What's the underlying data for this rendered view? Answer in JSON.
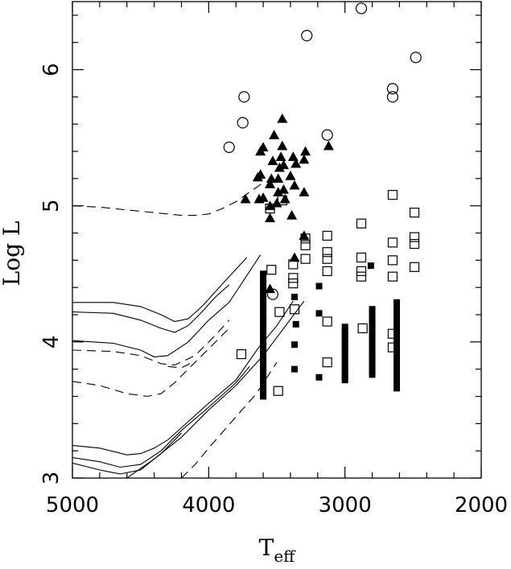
{
  "chart_data": {
    "type": "scatter",
    "xlabel_main": "T",
    "xlabel_sub": "eff",
    "ylabel": "Log L",
    "xlim": [
      5000,
      2000
    ],
    "ylim": [
      3,
      6.5
    ],
    "x_ticks": [
      5000,
      4000,
      3000,
      2000
    ],
    "x_tick_labels": [
      "5000",
      "4000",
      "3000",
      "2000"
    ],
    "y_ticks": [
      3,
      4,
      5,
      6
    ],
    "y_tick_labels": [
      "3",
      "4",
      "5",
      "6"
    ],
    "grid": false,
    "legend": "none",
    "series": [
      {
        "marker": "open-circle",
        "points": [
          [
            3850,
            5.43
          ],
          [
            3750,
            5.61
          ],
          [
            3740,
            5.8
          ],
          [
            3530,
            4.35
          ],
          [
            3280,
            6.25
          ],
          [
            3130,
            5.52
          ],
          [
            2880,
            6.45
          ],
          [
            2650,
            5.86
          ],
          [
            2650,
            5.8
          ],
          [
            2480,
            6.09
          ]
        ]
      },
      {
        "marker": "filled-triangle",
        "points": [
          [
            3730,
            5.05
          ],
          [
            3630,
            5.05
          ],
          [
            3640,
            5.21
          ],
          [
            3620,
            5.23
          ],
          [
            3620,
            5.4
          ],
          [
            3600,
            5.43
          ],
          [
            3600,
            5.06
          ],
          [
            3550,
            4.91
          ],
          [
            3550,
            5.0
          ],
          [
            3550,
            5.16
          ],
          [
            3540,
            5.2
          ],
          [
            3530,
            5.33
          ],
          [
            3520,
            5.52
          ],
          [
            3500,
            5.02
          ],
          [
            3490,
            5.1
          ],
          [
            3490,
            5.2
          ],
          [
            3480,
            5.28
          ],
          [
            3470,
            5.36
          ],
          [
            3460,
            5.44
          ],
          [
            3460,
            5.64
          ],
          [
            3450,
            5.12
          ],
          [
            3450,
            5.3
          ],
          [
            3440,
            5.05
          ],
          [
            3400,
            5.22
          ],
          [
            3390,
            4.93
          ],
          [
            3380,
            5.36
          ],
          [
            3370,
            5.15
          ],
          [
            3360,
            5.31
          ],
          [
            3300,
            5.1
          ],
          [
            3300,
            5.34
          ],
          [
            3290,
            5.4
          ],
          [
            3120,
            5.44
          ],
          [
            3370,
            4.62
          ],
          [
            3550,
            4.39
          ],
          [
            3300,
            4.78
          ]
        ]
      },
      {
        "marker": "open-square",
        "points": [
          [
            3760,
            3.91
          ],
          [
            3550,
            4.98
          ],
          [
            3540,
            4.53
          ],
          [
            3490,
            3.64
          ],
          [
            3480,
            4.22
          ],
          [
            3460,
            5.04
          ],
          [
            3380,
            4.57
          ],
          [
            3380,
            4.47
          ],
          [
            3380,
            4.43
          ],
          [
            3370,
            4.24
          ],
          [
            3290,
            4.61
          ],
          [
            3290,
            4.71
          ],
          [
            3290,
            4.76
          ],
          [
            3130,
            4.78
          ],
          [
            3130,
            4.66
          ],
          [
            3130,
            4.61
          ],
          [
            3130,
            4.52
          ],
          [
            3130,
            4.15
          ],
          [
            3130,
            3.85
          ],
          [
            2880,
            4.87
          ],
          [
            2880,
            4.62
          ],
          [
            2880,
            4.52
          ],
          [
            2880,
            4.48
          ],
          [
            2870,
            4.1
          ],
          [
            2650,
            5.08
          ],
          [
            2650,
            4.73
          ],
          [
            2650,
            4.6
          ],
          [
            2650,
            4.48
          ],
          [
            2650,
            4.06
          ],
          [
            2650,
            3.96
          ],
          [
            2490,
            4.95
          ],
          [
            2490,
            4.77
          ],
          [
            2490,
            4.72
          ],
          [
            2490,
            4.55
          ]
        ]
      },
      {
        "marker": "filled-square",
        "columns": [
          {
            "x": 3600,
            "y_from": 3.6,
            "y_to": 4.5,
            "step": 0.03
          },
          {
            "x": 3000,
            "y_from": 3.72,
            "y_to": 4.12,
            "step": 0.03
          },
          {
            "x": 2800,
            "y_from": 3.76,
            "y_to": 4.24,
            "step": 0.03
          },
          {
            "x": 2620,
            "y_from": 3.66,
            "y_to": 4.3,
            "step": 0.03
          }
        ],
        "points": [
          [
            3370,
            4.33
          ],
          [
            3360,
            4.13
          ],
          [
            3370,
            3.98
          ],
          [
            3370,
            3.8
          ],
          [
            3190,
            4.41
          ],
          [
            3190,
            4.21
          ],
          [
            3190,
            3.74
          ],
          [
            2810,
            4.56
          ]
        ]
      }
    ],
    "tracks": [
      {
        "style": "dashed",
        "points": [
          [
            5000,
            5.0
          ],
          [
            4800,
            4.99
          ],
          [
            4600,
            4.97
          ],
          [
            4400,
            4.95
          ],
          [
            4200,
            4.93
          ],
          [
            4100,
            4.93
          ],
          [
            4000,
            4.94
          ],
          [
            3900,
            4.98
          ],
          [
            3800,
            5.03
          ],
          [
            3700,
            5.1
          ],
          [
            3600,
            5.17
          ]
        ]
      },
      {
        "style": "solid",
        "points": [
          [
            5000,
            4.29
          ],
          [
            4700,
            4.29
          ],
          [
            4500,
            4.26
          ],
          [
            4350,
            4.2
          ],
          [
            4250,
            4.15
          ],
          [
            4150,
            4.17
          ],
          [
            4050,
            4.26
          ],
          [
            3950,
            4.37
          ],
          [
            3850,
            4.48
          ],
          [
            3720,
            4.62
          ]
        ]
      },
      {
        "style": "solid",
        "points": [
          [
            5000,
            4.22
          ],
          [
            4700,
            4.21
          ],
          [
            4500,
            4.16
          ],
          [
            4350,
            4.1
          ],
          [
            4250,
            4.07
          ],
          [
            4150,
            4.12
          ],
          [
            4050,
            4.22
          ],
          [
            3950,
            4.33
          ],
          [
            3850,
            4.42
          ]
        ]
      },
      {
        "style": "solid",
        "points": [
          [
            5000,
            4.01
          ],
          [
            4700,
            3.99
          ],
          [
            4500,
            3.94
          ],
          [
            4400,
            3.89
          ],
          [
            4300,
            3.9
          ],
          [
            4150,
            4.0
          ],
          [
            4000,
            4.16
          ],
          [
            3850,
            4.29
          ],
          [
            3620,
            4.64
          ]
        ]
      },
      {
        "style": "dashed",
        "points": [
          [
            5000,
            3.94
          ],
          [
            4700,
            3.93
          ],
          [
            4500,
            3.9
          ],
          [
            4350,
            3.84
          ],
          [
            4250,
            3.83
          ],
          [
            4100,
            3.9
          ],
          [
            3950,
            4.05
          ],
          [
            3850,
            4.16
          ]
        ]
      },
      {
        "style": "dashed",
        "points": [
          [
            5000,
            3.71
          ],
          [
            4800,
            3.68
          ],
          [
            4600,
            3.62
          ],
          [
            4450,
            3.6
          ],
          [
            4350,
            3.62
          ],
          [
            4250,
            3.7
          ],
          [
            4100,
            3.85
          ],
          [
            3950,
            4.0
          ],
          [
            3850,
            4.1
          ]
        ]
      },
      {
        "style": "dashed",
        "points": [
          [
            4300,
            3.82
          ],
          [
            4200,
            3.81
          ],
          [
            4100,
            3.86
          ]
        ]
      },
      {
        "style": "solid",
        "points": [
          [
            5000,
            3.24
          ],
          [
            4800,
            3.22
          ],
          [
            4600,
            3.17
          ],
          [
            4500,
            3.18
          ],
          [
            4400,
            3.22
          ],
          [
            4300,
            3.28
          ],
          [
            4200,
            3.37
          ],
          [
            4000,
            3.55
          ],
          [
            3800,
            3.72
          ],
          [
            3640,
            3.95
          ],
          [
            3500,
            4.12
          ],
          [
            3380,
            4.3
          ]
        ]
      },
      {
        "style": "solid",
        "points": [
          [
            5000,
            3.15
          ],
          [
            4800,
            3.12
          ],
          [
            4650,
            3.08
          ],
          [
            4500,
            3.1
          ],
          [
            4350,
            3.2
          ],
          [
            4200,
            3.35
          ],
          [
            4000,
            3.52
          ],
          [
            3800,
            3.7
          ],
          [
            3700,
            3.82
          ]
        ]
      },
      {
        "style": "solid",
        "points": [
          [
            5000,
            3.11
          ],
          [
            4800,
            3.06
          ],
          [
            4650,
            3.03
          ],
          [
            4500,
            3.06
          ],
          [
            4350,
            3.18
          ],
          [
            4200,
            3.33
          ]
        ]
      },
      {
        "style": "solid",
        "points": [
          [
            4600,
            3.0
          ],
          [
            4400,
            3.14
          ],
          [
            4200,
            3.3
          ],
          [
            4000,
            3.5
          ],
          [
            3800,
            3.68
          ],
          [
            3600,
            3.9
          ],
          [
            3450,
            4.1
          ],
          [
            3300,
            4.3
          ]
        ]
      },
      {
        "style": "dashed",
        "points": [
          [
            4200,
            3.0
          ],
          [
            4100,
            3.1
          ],
          [
            4000,
            3.22
          ],
          [
            3800,
            3.45
          ],
          [
            3650,
            3.62
          ],
          [
            3500,
            3.85
          ]
        ]
      }
    ]
  }
}
